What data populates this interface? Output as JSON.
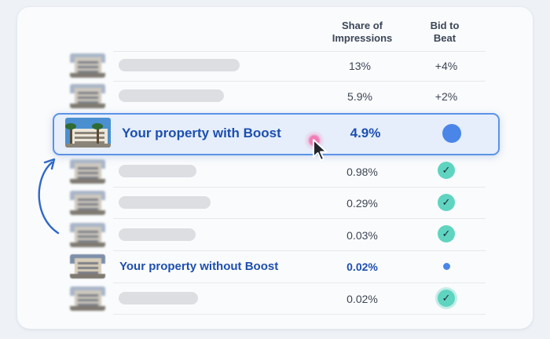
{
  "headers": {
    "share_line1": "Share of",
    "share_line2": "Impressions",
    "bid_line1": "Bid to",
    "bid_line2": "Beat"
  },
  "rows": [
    {
      "share": "13%",
      "bid": "+4%"
    },
    {
      "share": "5.9%",
      "bid": "+2%"
    },
    {
      "label": "Your property with Boost",
      "share": "4.9%",
      "highlighted": true
    },
    {
      "share": "0.98%",
      "bid": "check"
    },
    {
      "share": "0.29%",
      "bid": "check"
    },
    {
      "share": "0.03%",
      "bid": "check"
    },
    {
      "label": "Your property without Boost",
      "share": "0.02%",
      "highlighted": false
    },
    {
      "share": "0.02%",
      "bid": "check"
    }
  ],
  "icons": {
    "check": "check-icon",
    "current_bid": "bid-dot-icon",
    "move_up": "curved-arrow-up-icon",
    "cursor": "mouse-pointer-icon"
  },
  "colors": {
    "accent": "#1d4fb0",
    "highlight_border": "#5b93e6",
    "check_fill": "#5fd4c0",
    "dot": "#4a86e8"
  }
}
